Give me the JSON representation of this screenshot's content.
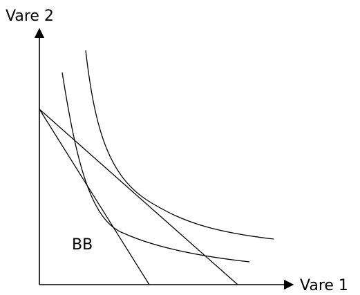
{
  "diagram": {
    "y_axis_label": "Vare 2",
    "x_axis_label": "Vare 1",
    "region_label": "BB",
    "line_color": "#000000",
    "background": "#ffffff"
  }
}
